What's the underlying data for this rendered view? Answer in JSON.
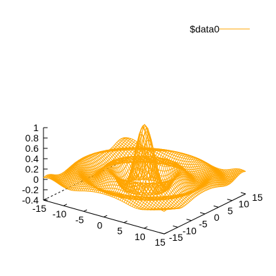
{
  "chart_data": {
    "type": "surface",
    "function": "sin(sqrt(x^2 + y^2)) / sqrt(x^2 + y^2)",
    "legend": "$data0",
    "legend_position": "top-right",
    "color": "#ffa500",
    "axis_color": "#000000",
    "x_range": [
      -15,
      15
    ],
    "y_range": [
      -15,
      15
    ],
    "z_range": [
      -0.4,
      1
    ],
    "x_ticks": [
      "-15",
      "-10",
      "-5",
      "0",
      "5",
      "10",
      "15"
    ],
    "y_ticks": [
      "-15",
      "-10",
      "-5",
      "0",
      "5",
      "10",
      "15"
    ],
    "z_ticks": [
      "1",
      "0.8",
      "0.6",
      "0.4",
      "0.2",
      "0",
      "-0.2",
      "-0.4"
    ],
    "grid": false
  }
}
